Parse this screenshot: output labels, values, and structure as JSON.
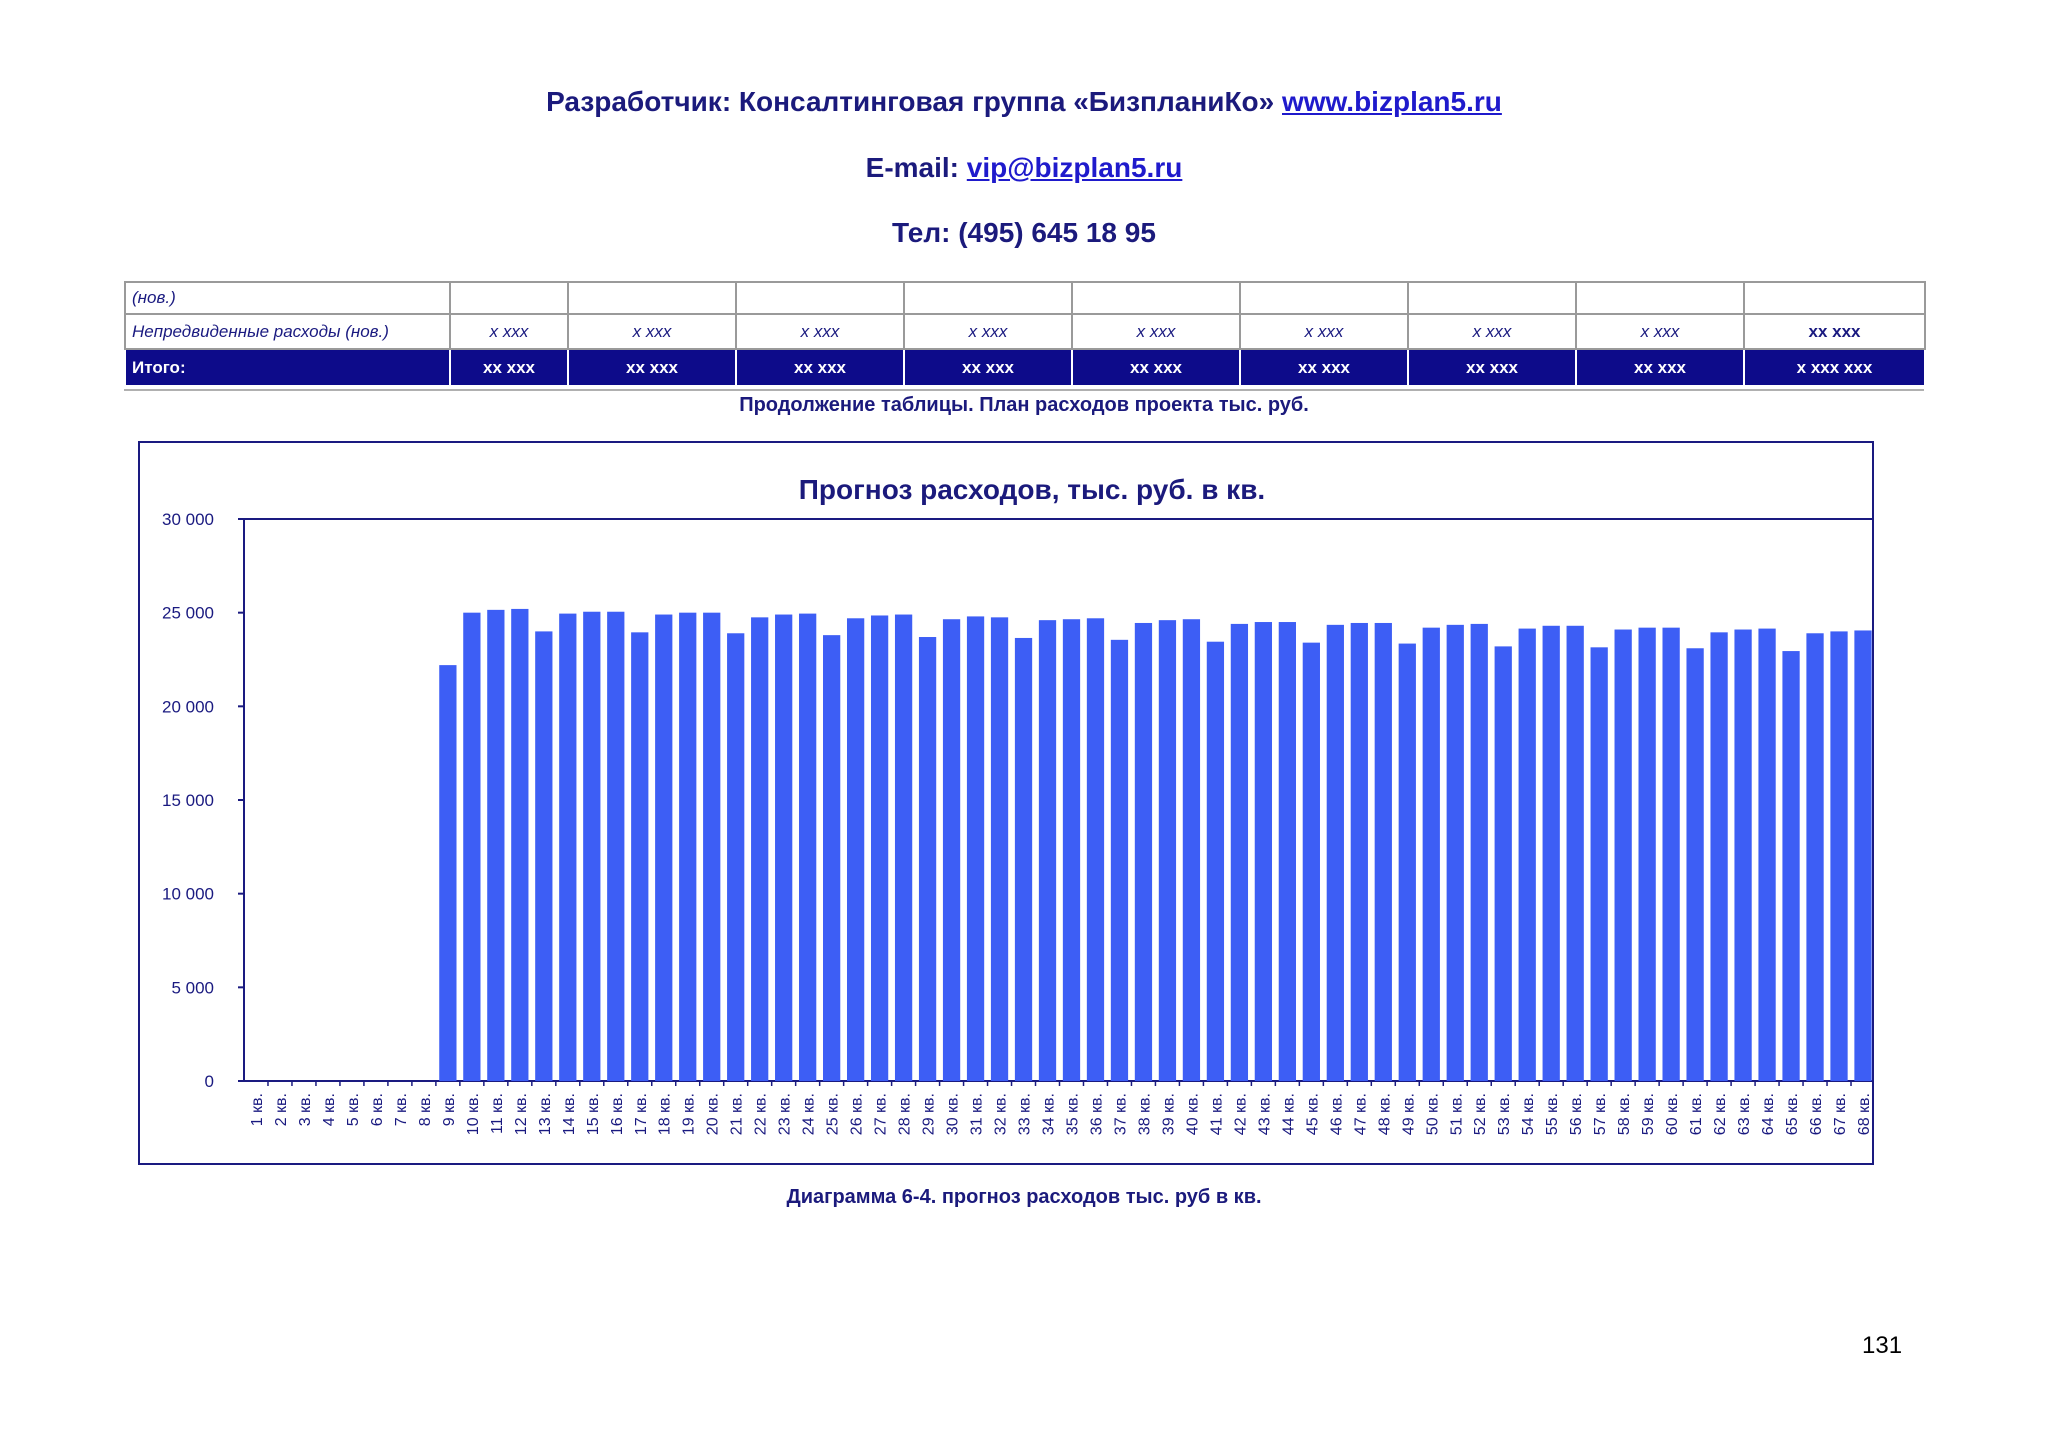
{
  "header": {
    "developer_text": "Разработчик: Консалтинговая группа «БизпланиКо»",
    "website": "www.bizplan5.ru",
    "email_label": "E-mail:",
    "email": "vip@bizplan5.ru",
    "phone": "Тел: (495) 645 18 95"
  },
  "table": {
    "row_new_label": "(нов.)",
    "row_unexpected": {
      "label": "Непредвиденные расходы (нов.)",
      "cells": [
        "x xxx",
        "x xxx",
        "x xxx",
        "x xxx",
        "x xxx",
        "x xxx",
        "x xxx",
        "x xxx",
        "xx xxx"
      ]
    },
    "row_total": {
      "label": "Итого:",
      "cells": [
        "xx xxx",
        "xx xxx",
        "xx xxx",
        "xx xxx",
        "xx xxx",
        "xx xxx",
        "xx xxx",
        "xx xxx",
        "x xxx xxx"
      ]
    },
    "caption": "Продолжение таблицы. План расходов проекта тыс. руб."
  },
  "chart_data": {
    "type": "bar",
    "title": "Прогноз расходов, тыс. руб. в кв.",
    "xlabel": "",
    "ylabel": "",
    "ylim": [
      0,
      30000
    ],
    "yticks": [
      "0",
      "5 000",
      "10 000",
      "15 000",
      "20 000",
      "25 000",
      "30 000"
    ],
    "ytick_values": [
      0,
      5000,
      10000,
      15000,
      20000,
      25000,
      30000
    ],
    "bar_color": "#3d5ef5",
    "categories": [
      "1 кв.",
      "2 кв.",
      "3 кв.",
      "4 кв.",
      "5 кв.",
      "6 кв.",
      "7 кв.",
      "8 кв.",
      "9 кв.",
      "10 кв.",
      "11 кв.",
      "12 кв.",
      "13 кв.",
      "14 кв.",
      "15 кв.",
      "16 кв.",
      "17 кв.",
      "18 кв.",
      "19 кв.",
      "20 кв.",
      "21 кв.",
      "22 кв.",
      "23 кв.",
      "24 кв.",
      "25 кв.",
      "26 кв.",
      "27 кв.",
      "28 кв.",
      "29 кв.",
      "30 кв.",
      "31 кв.",
      "32 кв.",
      "33 кв.",
      "34 кв.",
      "35 кв.",
      "36 кв.",
      "37 кв.",
      "38 кв.",
      "39 кв.",
      "40 кв.",
      "41 кв.",
      "42 кв.",
      "43 кв.",
      "44 кв.",
      "45 кв.",
      "46 кв.",
      "47 кв.",
      "48 кв.",
      "49 кв.",
      "50 кв.",
      "51 кв.",
      "52 кв.",
      "53 кв.",
      "54 кв.",
      "55 кв.",
      "56 кв.",
      "57 кв.",
      "58 кв.",
      "59 кв.",
      "60 кв.",
      "61 кв.",
      "62 кв.",
      "63 кв.",
      "64 кв.",
      "65 кв.",
      "66 кв.",
      "67 кв.",
      "68 кв."
    ],
    "values": [
      0,
      0,
      0,
      0,
      0,
      0,
      0,
      0,
      22200,
      25000,
      25150,
      25200,
      24000,
      24950,
      25050,
      25050,
      23950,
      24900,
      25000,
      25000,
      23900,
      24750,
      24900,
      24950,
      23800,
      24700,
      24850,
      24900,
      23700,
      24650,
      24800,
      24750,
      23650,
      24600,
      24650,
      24700,
      23550,
      24450,
      24600,
      24650,
      23450,
      24400,
      24500,
      24500,
      23400,
      24350,
      24450,
      24450,
      23350,
      24200,
      24350,
      24400,
      23200,
      24150,
      24300,
      24300,
      23150,
      24100,
      24200,
      24200,
      23100,
      23950,
      24100,
      24150,
      22950,
      23900,
      24000,
      24050
    ]
  },
  "chart_caption": "Диаграмма 6-4. прогноз расходов тыс. руб в кв.",
  "page_number": "131"
}
